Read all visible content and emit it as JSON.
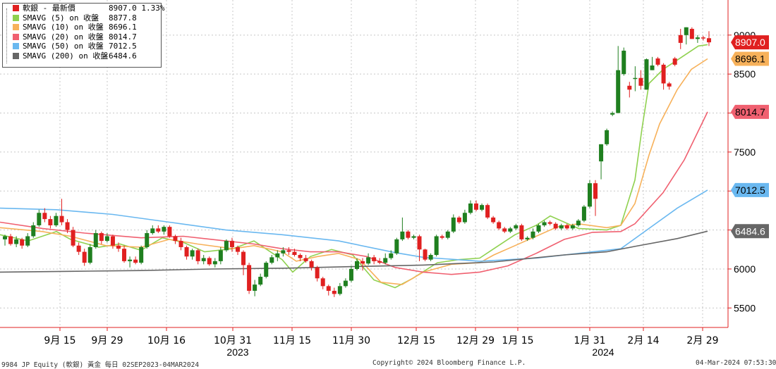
{
  "chart_data": {
    "type": "candlestick",
    "x_axis": {
      "tick_labels": [
        "9月 15",
        "9月 29",
        "10月 16",
        "10月 31",
        "11月 15",
        "11月 30",
        "12月 15",
        "12月 29",
        "1月 15",
        "1月 31",
        "2月 14",
        "2月 29"
      ],
      "year_labels": [
        "2023",
        "2024"
      ]
    },
    "y_axis": {
      "ticks": [
        5500,
        6000,
        6500,
        7000,
        7500,
        8000,
        8500,
        9000
      ],
      "tick_labels": [
        "5500",
        "6000",
        "",
        "",
        "7500",
        "",
        "8500",
        "9000"
      ],
      "ylim": [
        5250,
        9450
      ],
      "grid": true
    },
    "candles": [
      [
        6380,
        6420,
        6300,
        6440
      ],
      [
        6420,
        6320,
        6300,
        6450
      ],
      [
        6320,
        6380,
        6280,
        6420
      ],
      [
        6380,
        6300,
        6260,
        6400
      ],
      [
        6300,
        6420,
        6280,
        6460
      ],
      [
        6420,
        6560,
        6400,
        6600
      ],
      [
        6560,
        6720,
        6540,
        6760
      ],
      [
        6720,
        6640,
        6600,
        6780
      ],
      [
        6640,
        6560,
        6520,
        6680
      ],
      [
        6560,
        6680,
        6540,
        6720
      ],
      [
        6680,
        6600,
        6560,
        6900
      ],
      [
        6600,
        6500,
        6460,
        6640
      ],
      [
        6500,
        6300,
        6280,
        6540
      ],
      [
        6300,
        6220,
        6180,
        6340
      ],
      [
        6220,
        6080,
        6040,
        6260
      ],
      [
        6080,
        6280,
        6060,
        6320
      ],
      [
        6280,
        6460,
        6260,
        6500
      ],
      [
        6460,
        6360,
        6320,
        6480
      ],
      [
        6360,
        6420,
        6340,
        6460
      ],
      [
        6420,
        6300,
        6260,
        6440
      ],
      [
        6300,
        6260,
        6220,
        6340
      ],
      [
        6260,
        6100,
        6080,
        6300
      ],
      [
        6100,
        6120,
        6020,
        6160
      ],
      [
        6120,
        6080,
        6060,
        6160
      ],
      [
        6080,
        6280,
        6060,
        6300
      ],
      [
        6280,
        6460,
        6260,
        6500
      ],
      [
        6460,
        6520,
        6440,
        6560
      ],
      [
        6520,
        6480,
        6460,
        6560
      ],
      [
        6480,
        6540,
        6440,
        6560
      ],
      [
        6540,
        6420,
        6400,
        6560
      ],
      [
        6420,
        6360,
        6320,
        6440
      ],
      [
        6360,
        6280,
        6240,
        6400
      ],
      [
        6280,
        6160,
        6120,
        6300
      ],
      [
        6160,
        6240,
        6120,
        6260
      ],
      [
        6240,
        6100,
        6060,
        6260
      ],
      [
        6100,
        6140,
        6060,
        6180
      ],
      [
        6140,
        6060,
        6040,
        6160
      ],
      [
        6060,
        6100,
        6020,
        6140
      ],
      [
        6100,
        6240,
        6060,
        6280
      ],
      [
        6240,
        6360,
        6220,
        6380
      ],
      [
        6360,
        6280,
        6220,
        6400
      ],
      [
        6280,
        6220,
        6180,
        6300
      ],
      [
        6220,
        6050,
        5920,
        6240
      ],
      [
        6050,
        5720,
        5680,
        6080
      ],
      [
        5720,
        5800,
        5650,
        5860
      ],
      [
        5800,
        5900,
        5780,
        5940
      ],
      [
        5900,
        6080,
        5880,
        6100
      ],
      [
        6080,
        6150,
        6060,
        6180
      ],
      [
        6150,
        6200,
        6100,
        6240
      ],
      [
        6200,
        6240,
        6160,
        6280
      ],
      [
        6240,
        6220,
        6180,
        6280
      ],
      [
        6220,
        6180,
        6160,
        6260
      ],
      [
        6180,
        6140,
        6100,
        6200
      ],
      [
        6140,
        6100,
        6080,
        6180
      ],
      [
        6100,
        6020,
        5980,
        6120
      ],
      [
        6020,
        5880,
        5840,
        6040
      ],
      [
        5880,
        5780,
        5740,
        5900
      ],
      [
        5780,
        5720,
        5660,
        5800
      ],
      [
        5720,
        5680,
        5640,
        5760
      ],
      [
        5680,
        5780,
        5660,
        5820
      ],
      [
        5780,
        5850,
        5760,
        5880
      ],
      [
        5850,
        6000,
        5830,
        6040
      ],
      [
        6000,
        6100,
        5980,
        6140
      ],
      [
        6100,
        6070,
        5980,
        6140
      ],
      [
        6070,
        6150,
        6050,
        6200
      ],
      [
        6150,
        6100,
        6060,
        6180
      ],
      [
        6100,
        6080,
        6060,
        6140
      ],
      [
        6080,
        6140,
        6060,
        6200
      ],
      [
        6140,
        6200,
        6120,
        6240
      ],
      [
        6200,
        6380,
        6180,
        6400
      ],
      [
        6380,
        6480,
        6360,
        6660
      ],
      [
        6480,
        6400,
        6380,
        6500
      ],
      [
        6400,
        6420,
        6380,
        6440
      ],
      [
        6420,
        6250,
        6100,
        6440
      ],
      [
        6250,
        6120,
        6100,
        6260
      ],
      [
        6120,
        6180,
        6100,
        6200
      ],
      [
        6180,
        6420,
        6160,
        6440
      ],
      [
        6420,
        6400,
        6380,
        6440
      ],
      [
        6400,
        6480,
        6380,
        6500
      ],
      [
        6480,
        6660,
        6460,
        6700
      ],
      [
        6660,
        6600,
        6580,
        6680
      ],
      [
        6600,
        6720,
        6580,
        6760
      ],
      [
        6720,
        6840,
        6700,
        6880
      ],
      [
        6840,
        6760,
        6740,
        6880
      ],
      [
        6760,
        6820,
        6740,
        6840
      ],
      [
        6820,
        6660,
        6640,
        6840
      ],
      [
        6660,
        6600,
        6580,
        6680
      ],
      [
        6600,
        6520,
        6500,
        6620
      ],
      [
        6520,
        6480,
        6460,
        6540
      ],
      [
        6480,
        6520,
        6460,
        6540
      ],
      [
        6520,
        6560,
        6500,
        6580
      ],
      [
        6560,
        6380,
        6360,
        6580
      ],
      [
        6380,
        6400,
        6360,
        6420
      ],
      [
        6400,
        6480,
        6380,
        6520
      ],
      [
        6480,
        6560,
        6460,
        6580
      ],
      [
        6560,
        6600,
        6540,
        6620
      ],
      [
        6600,
        6580,
        6560,
        6620
      ],
      [
        6580,
        6520,
        6500,
        6600
      ],
      [
        6520,
        6560,
        6500,
        6580
      ],
      [
        6560,
        6520,
        6500,
        6580
      ],
      [
        6520,
        6560,
        6500,
        6580
      ],
      [
        6560,
        6620,
        6540,
        6640
      ],
      [
        6620,
        6800,
        6600,
        6820
      ],
      [
        6800,
        7100,
        6780,
        7140
      ],
      [
        7100,
        6900,
        6680,
        7140
      ],
      [
        7380,
        7600,
        7150,
        7600
      ],
      [
        7600,
        7780,
        7580,
        7800
      ],
      [
        7980,
        8000,
        7960,
        8020
      ],
      [
        8000,
        8550,
        8000,
        8860
      ],
      [
        8500,
        8800,
        8480,
        8840
      ],
      [
        8350,
        8300,
        8200,
        8400
      ],
      [
        8450,
        8450,
        8280,
        8600
      ],
      [
        8450,
        8350,
        8300,
        8550
      ],
      [
        8300,
        8690,
        8300,
        8700
      ],
      [
        8550,
        8610,
        8550,
        8720
      ],
      [
        8700,
        8620,
        8600,
        8720
      ],
      [
        8620,
        8380,
        8300,
        8640
      ],
      [
        8380,
        8340,
        8300,
        8400
      ],
      [
        8700,
        8620,
        8600,
        8720
      ],
      [
        9000,
        8900,
        8820,
        9080
      ],
      [
        9000,
        9100,
        8880,
        9100
      ],
      [
        9080,
        8950,
        8950,
        9100
      ],
      [
        8950,
        8970,
        8900,
        9000
      ],
      [
        8970,
        8960,
        8930,
        8990
      ],
      [
        8960,
        8907,
        8860,
        9050
      ]
    ],
    "candle_fill_colors": {
      "up": "#1f7f1f",
      "down": "#e02020"
    },
    "series": [
      {
        "name": "SMAVG (5)  on 收盤",
        "color": "#8fd14f",
        "last": "8877.8",
        "points": [
          [
            0,
            6440
          ],
          [
            40,
            6360
          ],
          [
            80,
            6480
          ],
          [
            100,
            6380
          ],
          [
            140,
            6280
          ],
          [
            170,
            6320
          ],
          [
            200,
            6240
          ],
          [
            230,
            6400
          ],
          [
            260,
            6340
          ],
          [
            290,
            6220
          ],
          [
            330,
            6260
          ],
          [
            360,
            6360
          ],
          [
            400,
            6120
          ],
          [
            415,
            5960
          ],
          [
            440,
            6160
          ],
          [
            470,
            6250
          ],
          [
            500,
            6180
          ],
          [
            530,
            5860
          ],
          [
            560,
            5760
          ],
          [
            585,
            5880
          ],
          [
            620,
            6080
          ],
          [
            650,
            6120
          ],
          [
            680,
            6140
          ],
          [
            700,
            6260
          ],
          [
            730,
            6440
          ],
          [
            760,
            6560
          ],
          [
            780,
            6680
          ],
          [
            800,
            6600
          ],
          [
            820,
            6520
          ],
          [
            860,
            6500
          ],
          [
            880,
            6560
          ],
          [
            900,
            7140
          ],
          [
            910,
            7800
          ],
          [
            920,
            8380
          ],
          [
            940,
            8560
          ],
          [
            960,
            8680
          ],
          [
            990,
            8860
          ],
          [
            1003,
            8877.8
          ]
        ]
      },
      {
        "name": "SMAVG (10)  on 收盤",
        "color": "#f7b15a",
        "last": "8696.1",
        "points": [
          [
            0,
            6530
          ],
          [
            60,
            6480
          ],
          [
            100,
            6420
          ],
          [
            150,
            6300
          ],
          [
            200,
            6280
          ],
          [
            240,
            6380
          ],
          [
            280,
            6320
          ],
          [
            330,
            6260
          ],
          [
            360,
            6300
          ],
          [
            400,
            6220
          ],
          [
            420,
            6100
          ],
          [
            450,
            6160
          ],
          [
            480,
            6200
          ],
          [
            510,
            6120
          ],
          [
            540,
            5830
          ],
          [
            570,
            5800
          ],
          [
            600,
            5960
          ],
          [
            640,
            6060
          ],
          [
            680,
            6080
          ],
          [
            700,
            6180
          ],
          [
            730,
            6300
          ],
          [
            760,
            6420
          ],
          [
            790,
            6540
          ],
          [
            820,
            6580
          ],
          [
            860,
            6530
          ],
          [
            880,
            6560
          ],
          [
            900,
            6840
          ],
          [
            920,
            7460
          ],
          [
            935,
            7860
          ],
          [
            960,
            8300
          ],
          [
            980,
            8560
          ],
          [
            1003,
            8696.1
          ]
        ]
      },
      {
        "name": "SMAVG (20)  on 收盤",
        "color": "#f06070",
        "last": "8014.7",
        "points": [
          [
            0,
            6600
          ],
          [
            60,
            6520
          ],
          [
            120,
            6460
          ],
          [
            200,
            6400
          ],
          [
            260,
            6420
          ],
          [
            300,
            6380
          ],
          [
            360,
            6320
          ],
          [
            400,
            6260
          ],
          [
            440,
            6220
          ],
          [
            480,
            6220
          ],
          [
            520,
            6160
          ],
          [
            560,
            6020
          ],
          [
            600,
            5960
          ],
          [
            640,
            5930
          ],
          [
            680,
            5960
          ],
          [
            720,
            6040
          ],
          [
            760,
            6200
          ],
          [
            800,
            6380
          ],
          [
            840,
            6470
          ],
          [
            880,
            6480
          ],
          [
            900,
            6580
          ],
          [
            940,
            6980
          ],
          [
            970,
            7400
          ],
          [
            1003,
            8014.7
          ]
        ]
      },
      {
        "name": "SMAVG (50)  on 收盤",
        "color": "#6ab8f0",
        "last": "7012.5",
        "points": [
          [
            0,
            6780
          ],
          [
            80,
            6760
          ],
          [
            160,
            6700
          ],
          [
            240,
            6600
          ],
          [
            320,
            6500
          ],
          [
            400,
            6440
          ],
          [
            480,
            6360
          ],
          [
            560,
            6210
          ],
          [
            600,
            6150
          ],
          [
            680,
            6100
          ],
          [
            760,
            6140
          ],
          [
            840,
            6220
          ],
          [
            880,
            6260
          ],
          [
            920,
            6520
          ],
          [
            960,
            6780
          ],
          [
            1003,
            7012.5
          ]
        ]
      },
      {
        "name": "SMAVG (200)  on 收盤",
        "color": "#666666",
        "last": "6484.6",
        "points": [
          [
            0,
            5960
          ],
          [
            100,
            5970
          ],
          [
            200,
            5980
          ],
          [
            300,
            6000
          ],
          [
            400,
            6010
          ],
          [
            500,
            6030
          ],
          [
            600,
            6050
          ],
          [
            700,
            6090
          ],
          [
            800,
            6180
          ],
          [
            860,
            6220
          ],
          [
            900,
            6290
          ],
          [
            960,
            6390
          ],
          [
            1003,
            6484.6
          ]
        ]
      }
    ],
    "last_price": {
      "label": "8907.0",
      "color": "#e02020"
    }
  },
  "legend": {
    "header_label": "軟銀 - 最新價",
    "header_value": "8907.0  1.33%",
    "header_color": "#e02020",
    "rows": [
      {
        "label": "SMAVG (5)  on 收盤",
        "value": "8877.8",
        "color": "#8fd14f"
      },
      {
        "label": "SMAVG (10)  on 收盤",
        "value": "8696.1",
        "color": "#f7b15a"
      },
      {
        "label": "SMAVG (20)  on 收盤",
        "value": "8014.7",
        "color": "#f06070"
      },
      {
        "label": "SMAVG (50)  on 收盤",
        "value": "7012.5",
        "color": "#6ab8f0"
      },
      {
        "label": "SMAVG (200)  on 收盤",
        "value": "6484.6",
        "color": "#666666"
      }
    ]
  },
  "footer": {
    "left": "9984 JP Equity (軟銀) 黃金  每日 02SEP2023-04MAR2024",
    "center": "Copyright© 2024 Bloomberg Finance L.P.",
    "right": "04-Mar-2024 07:53:30"
  }
}
